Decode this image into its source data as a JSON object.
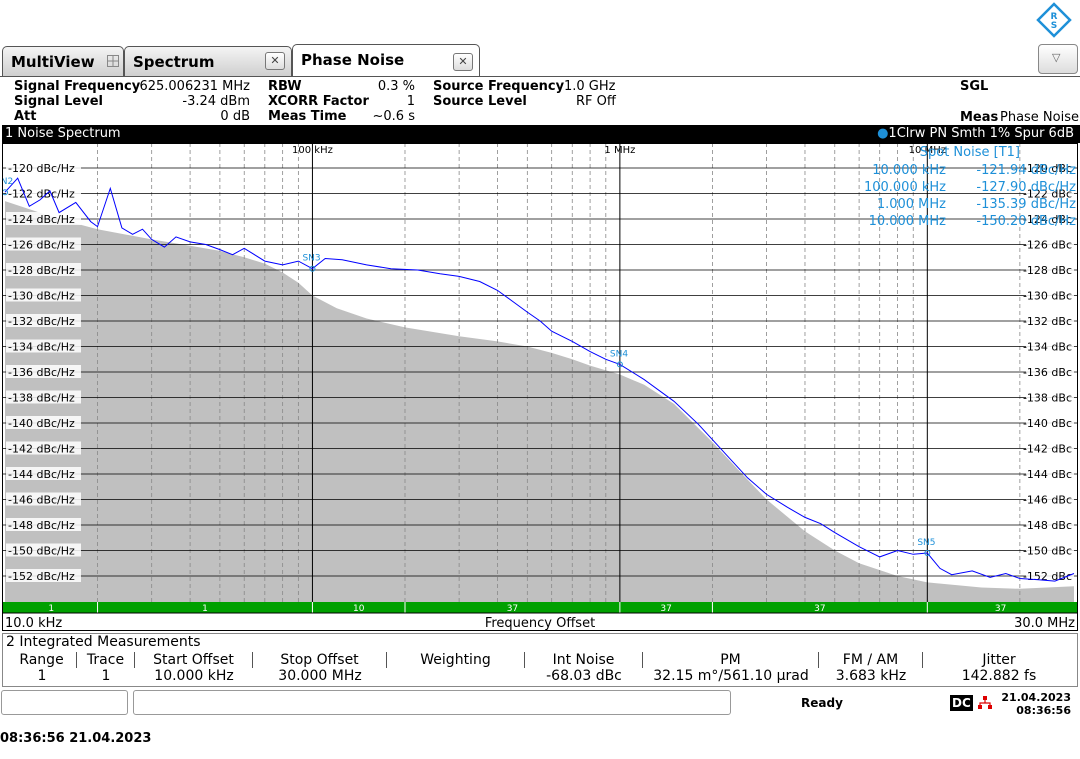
{
  "tabs": [
    {
      "label": "MultiView"
    },
    {
      "label": "Spectrum"
    },
    {
      "label": "Phase Noise"
    }
  ],
  "settings": {
    "signal_frequency_label": "Signal Frequency",
    "signal_frequency_value": "625.006231 MHz",
    "signal_level_label": "Signal Level",
    "signal_level_value": "-3.24 dBm",
    "att_label": "Att",
    "att_value": "0 dB",
    "rbw_label": "RBW",
    "rbw_value": "0.3 %",
    "xcorr_label": "XCORR Factor",
    "xcorr_value": "1",
    "meas_time_label": "Meas Time",
    "meas_time_value": "~0.6 s",
    "source_frequency_label": "Source Frequency",
    "source_frequency_value": "1.0 GHz",
    "source_level_label": "Source Level",
    "source_level_value": "RF Off",
    "sgl": "SGL",
    "meas_label": "Meas",
    "meas_value": "Phase Noise"
  },
  "window_title": "1 Noise Spectrum",
  "trace_info": "1Clrw PN Smth 1% Spur 6dB",
  "spot_noise": {
    "title": "Spot Noise [T1]",
    "rows": [
      {
        "offset": "10.000 kHz",
        "value": "-121.94 dBc/Hz"
      },
      {
        "offset": "100.000 kHz",
        "value": "-127.90 dBc/Hz"
      },
      {
        "offset": "1.000 MHz",
        "value": "-135.39 dBc/Hz"
      },
      {
        "offset": "10.000 MHz",
        "value": "-150.20 dBc/Hz"
      }
    ]
  },
  "chart_data": {
    "type": "line",
    "xscale": "log",
    "xlim": [
      10000,
      30000000
    ],
    "ylim": [
      -153.5,
      -119
    ],
    "xlabel": "Frequency Offset",
    "x_start_label": "10.0 kHz",
    "x_end_label": "30.0 MHz",
    "decade_labels": [
      {
        "x": 100000,
        "label": "100 kHz"
      },
      {
        "x": 1000000,
        "label": "1 MHz"
      },
      {
        "x": 10000000,
        "label": "10 MHz"
      }
    ],
    "y_ticks": [
      -120,
      -122,
      -124,
      -126,
      -128,
      -130,
      -132,
      -134,
      -136,
      -138,
      -140,
      -142,
      -144,
      -146,
      -148,
      -150,
      -152
    ],
    "y_tick_labels_left": [
      "-120 dBc/Hz",
      "-122 dBc/Hz",
      "-124 dBc/Hz",
      "-126 dBc/Hz",
      "-128 dBc/Hz",
      "-130 dBc/Hz",
      "-132 dBc/Hz",
      "-134 dBc/Hz",
      "-136 dBc/Hz",
      "-138 dBc/Hz",
      "-140 dBc/Hz",
      "-142 dBc/Hz",
      "-144 dBc/Hz",
      "-146 dBc/Hz",
      "-148 dBc/Hz",
      "-150 dBc/Hz",
      "-152 dBc/Hz"
    ],
    "y_tick_labels_right": [
      "-120 dBc",
      "-122 dBc",
      "-124 dBc",
      "-126 dBc",
      "-128 dBc",
      "-130 dBc",
      "-132 dBc",
      "-134 dBc",
      "-136 dBc",
      "-138 dBc",
      "-140 dBc",
      "-142 dBc",
      "-144 dBc",
      "-146 dBc",
      "-148 dBc",
      "-150 dBc",
      "-152 dBc"
    ],
    "series": [
      {
        "color": "#0000ff",
        "x": [
          10000,
          11000,
          12000,
          13000,
          14000,
          15000,
          17000,
          19000,
          20000,
          22000,
          24000,
          26000,
          28000,
          30000,
          33000,
          36000,
          40000,
          45000,
          50000,
          55000,
          60000,
          70000,
          80000,
          90000,
          100000,
          110000,
          125000,
          150000,
          180000,
          220000,
          260000,
          300000,
          350000,
          400000,
          450000,
          500000,
          550000,
          600000,
          700000,
          800000,
          900000,
          1000000,
          1200000,
          1500000,
          1800000,
          2200000,
          2600000,
          3000000,
          3500000,
          4000000,
          4500000,
          5000000,
          6000000,
          7000000,
          8000000,
          9000000,
          10000000,
          11000000,
          12000000,
          14000000,
          16000000,
          18000000,
          20000000,
          23000000,
          26000000,
          30000000
        ],
        "values": [
          -121.9,
          -120.8,
          -123.0,
          -122.5,
          -121.8,
          -123.5,
          -122.7,
          -124.2,
          -124.6,
          -121.6,
          -124.7,
          -125.2,
          -124.8,
          -125.6,
          -126.2,
          -125.4,
          -125.8,
          -126.0,
          -126.4,
          -126.8,
          -126.3,
          -127.3,
          -127.6,
          -127.3,
          -127.9,
          -127.1,
          -127.2,
          -127.6,
          -127.9,
          -128.0,
          -128.3,
          -128.5,
          -128.9,
          -129.6,
          -130.5,
          -131.3,
          -132.0,
          -132.8,
          -133.6,
          -134.4,
          -135.0,
          -135.4,
          -136.6,
          -138.3,
          -140.1,
          -142.4,
          -144.3,
          -145.6,
          -146.6,
          -147.4,
          -147.9,
          -148.6,
          -149.7,
          -150.5,
          -150.0,
          -150.3,
          -150.2,
          -151.4,
          -151.9,
          -151.6,
          -152.1,
          -151.8,
          -152.2,
          -152.3,
          -152.4,
          -151.8
        ]
      },
      {
        "color": "#c0c0c0",
        "x": [
          10000,
          15000,
          20000,
          30000,
          40000,
          50000,
          60000,
          70000,
          80000,
          90000,
          100000,
          120000,
          150000,
          200000,
          300000,
          400000,
          500000,
          600000,
          700000,
          800000,
          1000000,
          1200000,
          1500000,
          2000000,
          2500000,
          3000000,
          4000000,
          5000000,
          6000000,
          8000000,
          10000000,
          15000000,
          20000000,
          30000000
        ],
        "values": [
          -122.6,
          -124.0,
          -124.8,
          -125.6,
          -126.1,
          -126.5,
          -127.0,
          -127.5,
          -128.2,
          -129.0,
          -130.0,
          -131.0,
          -131.8,
          -132.5,
          -133.2,
          -133.6,
          -134.0,
          -134.5,
          -135.0,
          -135.5,
          -136.2,
          -137.0,
          -138.5,
          -141.5,
          -144.0,
          -146.0,
          -148.5,
          -150.0,
          -151.0,
          -152.0,
          -152.5,
          -152.9,
          -153.0,
          -152.8
        ]
      }
    ],
    "spot_markers": [
      {
        "label": "SN2",
        "x": 10000,
        "y": -121.9
      },
      {
        "label": "SN3",
        "x": 100000,
        "y": -127.9
      },
      {
        "label": "SN4",
        "x": 1000000,
        "y": -135.4
      },
      {
        "label": "SN5",
        "x": 10000000,
        "y": -150.2
      }
    ],
    "green_bar_labels": [
      "1",
      "1",
      "10",
      "37",
      "37",
      "37",
      "37"
    ]
  },
  "integrated": {
    "title": "2 Integrated Measurements",
    "headers": [
      "Range",
      "Trace",
      "Start Offset",
      "Stop Offset",
      "Weighting",
      "Int Noise",
      "PM",
      "FM / AM",
      "Jitter"
    ],
    "row": [
      "1",
      "1",
      "10.000 kHz",
      "30.000 MHz",
      "",
      "-68.03 dBc",
      "32.15 m°/561.10 µrad",
      "3.683 kHz",
      "142.882 fs"
    ]
  },
  "status": {
    "ready": "Ready",
    "dc": "DC",
    "date": "21.04.2023",
    "time": "08:36:56"
  },
  "bottom_timestamp": "08:36:56  21.04.2023",
  "colors": {
    "trace": "#0000ff",
    "marker": "#1e90d8",
    "floor": "#c0c0c0",
    "green": "#00a000"
  }
}
